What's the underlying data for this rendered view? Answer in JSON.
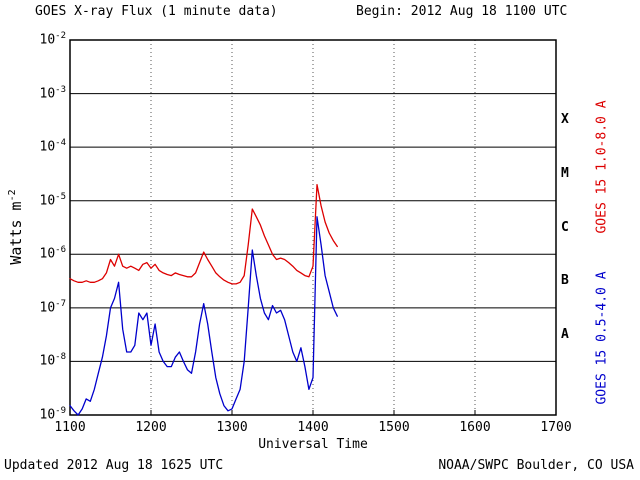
{
  "header": {
    "title": "GOES X-ray Flux (1 minute data)",
    "begin": "Begin: 2012 Aug 18 1100 UTC"
  },
  "footer": {
    "updated": "Updated 2012 Aug 18 1625 UTC",
    "source": "NOAA/SWPC Boulder, CO USA"
  },
  "chart_data": {
    "type": "line",
    "title": "GOES X-ray Flux (1 minute data)",
    "xlabel": "Universal Time",
    "ylabel_base": "Watts m",
    "ylabel_exp": "-2",
    "x_ticks": [
      "1100",
      "1200",
      "1300",
      "1400",
      "1500",
      "1600",
      "1700"
    ],
    "x_tick_minutes": [
      0,
      100,
      200,
      300,
      400,
      500,
      600
    ],
    "x_domain_minutes": [
      0,
      600
    ],
    "y_tick_exponents": [
      -2,
      -3,
      -4,
      -5,
      -6,
      -7,
      -8,
      -9
    ],
    "ylog_range": [
      -9,
      -2
    ],
    "grid": {
      "h_solid_exponents": [
        -3,
        -4,
        -5,
        -6,
        -7,
        -8
      ],
      "v_dotted_minutes": [
        100,
        200,
        300,
        400,
        500
      ]
    },
    "flare_classes": [
      {
        "label": "X",
        "log_mid": -3.5
      },
      {
        "label": "M",
        "log_mid": -4.5
      },
      {
        "label": "C",
        "log_mid": -5.5
      },
      {
        "label": "B",
        "log_mid": -6.5
      },
      {
        "label": "A",
        "log_mid": -7.5
      }
    ],
    "x_minutes": [
      0,
      5,
      10,
      15,
      20,
      25,
      30,
      35,
      40,
      45,
      50,
      55,
      60,
      65,
      70,
      75,
      80,
      85,
      90,
      95,
      100,
      105,
      110,
      115,
      120,
      125,
      130,
      135,
      140,
      145,
      150,
      155,
      160,
      165,
      170,
      175,
      180,
      185,
      190,
      195,
      200,
      205,
      210,
      215,
      220,
      225,
      230,
      235,
      240,
      245,
      250,
      255,
      260,
      265,
      270,
      275,
      280,
      285,
      290,
      295,
      300,
      305,
      310,
      315,
      320,
      325,
      330
    ],
    "series": [
      {
        "name": "GOES 15 1.0-8.0 A",
        "color": "#dd0000",
        "values": [
          3.5e-07,
          3.2e-07,
          3e-07,
          3e-07,
          3.2e-07,
          3e-07,
          3e-07,
          3.2e-07,
          3.5e-07,
          4.5e-07,
          8e-07,
          6e-07,
          1e-06,
          6e-07,
          5.5e-07,
          6e-07,
          5.5e-07,
          5e-07,
          6.5e-07,
          7e-07,
          5.5e-07,
          6.5e-07,
          5e-07,
          4.5e-07,
          4.2e-07,
          4e-07,
          4.5e-07,
          4.2e-07,
          4e-07,
          3.8e-07,
          3.8e-07,
          4.5e-07,
          7e-07,
          1.1e-06,
          8e-07,
          6e-07,
          4.5e-07,
          3.8e-07,
          3.3e-07,
          3e-07,
          2.8e-07,
          2.8e-07,
          3e-07,
          4e-07,
          1.5e-06,
          7e-06,
          5e-06,
          3.5e-06,
          2.2e-06,
          1.5e-06,
          1e-06,
          8e-07,
          8.5e-07,
          8e-07,
          7e-07,
          6e-07,
          5e-07,
          4.5e-07,
          4e-07,
          3.8e-07,
          6e-07,
          2e-05,
          8e-06,
          4e-06,
          2.5e-06,
          1.8e-06,
          1.4e-06
        ]
      },
      {
        "name": "GOES 15 0.5-4.0 A",
        "color": "#0000cc",
        "values": [
          1.5e-09,
          1.2e-09,
          1e-09,
          1.3e-09,
          2e-09,
          1.8e-09,
          3e-09,
          6e-09,
          1.2e-08,
          3e-08,
          1e-07,
          1.5e-07,
          3e-07,
          4e-08,
          1.5e-08,
          1.5e-08,
          2e-08,
          8e-08,
          6e-08,
          8e-08,
          2e-08,
          5e-08,
          1.5e-08,
          1e-08,
          8e-09,
          8e-09,
          1.2e-08,
          1.5e-08,
          1e-08,
          7e-09,
          6e-09,
          1.5e-08,
          5e-08,
          1.2e-07,
          5e-08,
          1.5e-08,
          5e-09,
          2.5e-09,
          1.5e-09,
          1.2e-09,
          1.3e-09,
          2e-09,
          3e-09,
          1e-08,
          1e-07,
          1.2e-06,
          4e-07,
          1.5e-07,
          8e-08,
          6e-08,
          1.1e-07,
          8e-08,
          9e-08,
          6e-08,
          3e-08,
          1.5e-08,
          1e-08,
          1.8e-08,
          8e-09,
          3e-09,
          5e-09,
          5e-06,
          1.5e-06,
          4e-07,
          2e-07,
          1e-07,
          7e-08
        ]
      }
    ]
  }
}
